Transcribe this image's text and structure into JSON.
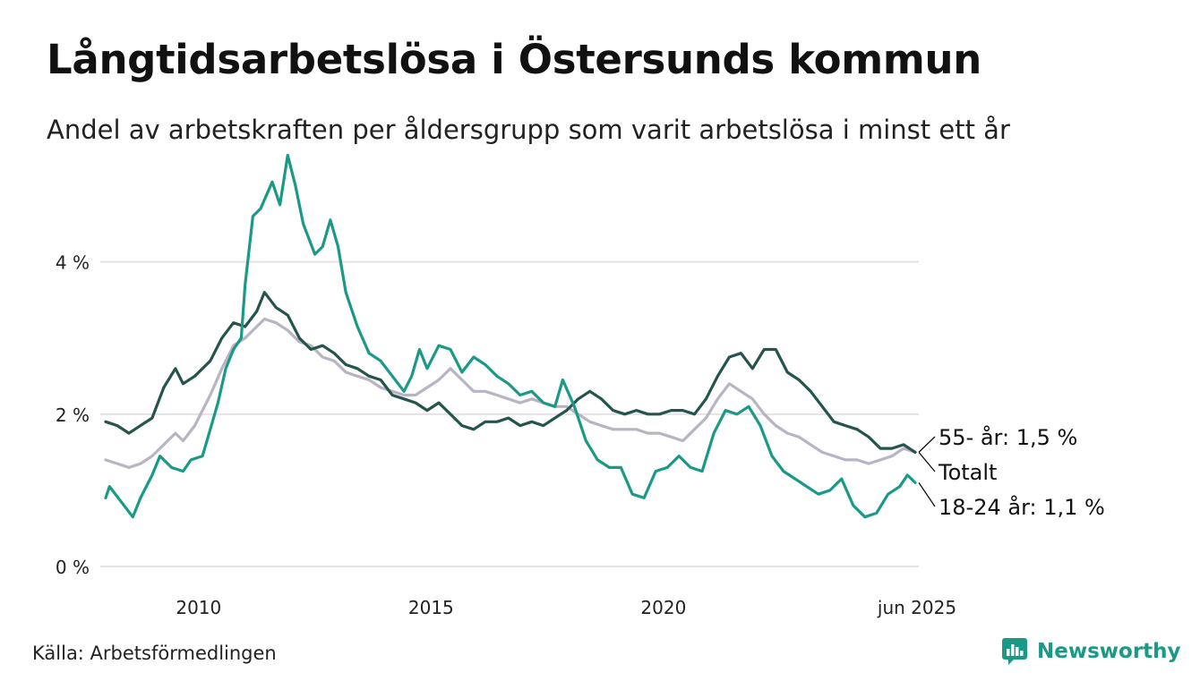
{
  "title": "Långtidsarbetslösa i Östersunds kommun",
  "subtitle": "Andel av arbetskraften per åldersgrupp som varit arbetslösa i minst ett år",
  "source": "Källa: Arbetsförmedlingen",
  "brand": "Newsworthy",
  "colors": {
    "s55": "#24544c",
    "total": "#b9b4c3",
    "s1824": "#1a9a86",
    "grid": "#e3e3e3",
    "brand": "#1a9a86"
  },
  "chart_data": {
    "type": "line",
    "x_range": [
      "2008-01",
      "2025-06"
    ],
    "ylim": [
      0,
      5.5
    ],
    "y_ticks": [
      {
        "value": 0,
        "label": "0 %"
      },
      {
        "value": 2,
        "label": "2 %"
      },
      {
        "value": 4,
        "label": "4 %"
      }
    ],
    "x_ticks": [
      {
        "value": "2010-01",
        "label": "2010"
      },
      {
        "value": "2015-01",
        "label": "2015"
      },
      {
        "value": "2020-01",
        "label": "2020"
      },
      {
        "value": "2025-06",
        "label": "jun 2025"
      }
    ],
    "grid": true,
    "series": [
      {
        "name": "55- år",
        "label": "55- år: 1,5 %",
        "color_key": "s55",
        "points": [
          [
            "2008-01",
            1.9
          ],
          [
            "2008-04",
            1.85
          ],
          [
            "2008-07",
            1.75
          ],
          [
            "2008-10",
            1.85
          ],
          [
            "2009-01",
            1.95
          ],
          [
            "2009-04",
            2.35
          ],
          [
            "2009-07",
            2.6
          ],
          [
            "2009-09",
            2.4
          ],
          [
            "2009-12",
            2.5
          ],
          [
            "2010-04",
            2.7
          ],
          [
            "2010-07",
            3.0
          ],
          [
            "2010-10",
            3.2
          ],
          [
            "2011-01",
            3.15
          ],
          [
            "2011-04",
            3.35
          ],
          [
            "2011-06",
            3.6
          ],
          [
            "2011-09",
            3.4
          ],
          [
            "2011-12",
            3.3
          ],
          [
            "2012-03",
            3.0
          ],
          [
            "2012-06",
            2.85
          ],
          [
            "2012-09",
            2.9
          ],
          [
            "2012-12",
            2.8
          ],
          [
            "2013-03",
            2.65
          ],
          [
            "2013-06",
            2.6
          ],
          [
            "2013-09",
            2.5
          ],
          [
            "2013-12",
            2.45
          ],
          [
            "2014-03",
            2.25
          ],
          [
            "2014-06",
            2.2
          ],
          [
            "2014-09",
            2.15
          ],
          [
            "2014-12",
            2.05
          ],
          [
            "2015-03",
            2.15
          ],
          [
            "2015-06",
            2.0
          ],
          [
            "2015-09",
            1.85
          ],
          [
            "2015-12",
            1.8
          ],
          [
            "2016-03",
            1.9
          ],
          [
            "2016-06",
            1.9
          ],
          [
            "2016-09",
            1.95
          ],
          [
            "2016-12",
            1.85
          ],
          [
            "2017-03",
            1.9
          ],
          [
            "2017-06",
            1.85
          ],
          [
            "2017-09",
            1.95
          ],
          [
            "2017-12",
            2.05
          ],
          [
            "2018-03",
            2.2
          ],
          [
            "2018-06",
            2.3
          ],
          [
            "2018-09",
            2.2
          ],
          [
            "2018-12",
            2.05
          ],
          [
            "2019-03",
            2.0
          ],
          [
            "2019-06",
            2.05
          ],
          [
            "2019-09",
            2.0
          ],
          [
            "2019-12",
            2.0
          ],
          [
            "2020-03",
            2.05
          ],
          [
            "2020-06",
            2.05
          ],
          [
            "2020-09",
            2.0
          ],
          [
            "2020-12",
            2.2
          ],
          [
            "2021-03",
            2.5
          ],
          [
            "2021-06",
            2.75
          ],
          [
            "2021-09",
            2.8
          ],
          [
            "2021-12",
            2.6
          ],
          [
            "2022-03",
            2.85
          ],
          [
            "2022-06",
            2.85
          ],
          [
            "2022-09",
            2.55
          ],
          [
            "2022-12",
            2.45
          ],
          [
            "2023-03",
            2.3
          ],
          [
            "2023-06",
            2.1
          ],
          [
            "2023-09",
            1.9
          ],
          [
            "2023-12",
            1.85
          ],
          [
            "2024-03",
            1.8
          ],
          [
            "2024-06",
            1.7
          ],
          [
            "2024-09",
            1.55
          ],
          [
            "2024-12",
            1.55
          ],
          [
            "2025-03",
            1.6
          ],
          [
            "2025-06",
            1.5
          ]
        ]
      },
      {
        "name": "Totalt",
        "label": "Totalt",
        "color_key": "total",
        "points": [
          [
            "2008-01",
            1.4
          ],
          [
            "2008-04",
            1.35
          ],
          [
            "2008-07",
            1.3
          ],
          [
            "2008-10",
            1.35
          ],
          [
            "2009-01",
            1.45
          ],
          [
            "2009-04",
            1.6
          ],
          [
            "2009-07",
            1.75
          ],
          [
            "2009-09",
            1.65
          ],
          [
            "2009-12",
            1.85
          ],
          [
            "2010-04",
            2.25
          ],
          [
            "2010-07",
            2.6
          ],
          [
            "2010-10",
            2.9
          ],
          [
            "2011-01",
            3.0
          ],
          [
            "2011-04",
            3.15
          ],
          [
            "2011-06",
            3.25
          ],
          [
            "2011-09",
            3.2
          ],
          [
            "2011-12",
            3.1
          ],
          [
            "2012-03",
            2.95
          ],
          [
            "2012-06",
            2.9
          ],
          [
            "2012-09",
            2.75
          ],
          [
            "2012-12",
            2.7
          ],
          [
            "2013-03",
            2.55
          ],
          [
            "2013-06",
            2.5
          ],
          [
            "2013-09",
            2.45
          ],
          [
            "2013-12",
            2.35
          ],
          [
            "2014-03",
            2.3
          ],
          [
            "2014-06",
            2.25
          ],
          [
            "2014-09",
            2.25
          ],
          [
            "2014-12",
            2.35
          ],
          [
            "2015-03",
            2.45
          ],
          [
            "2015-06",
            2.6
          ],
          [
            "2015-09",
            2.45
          ],
          [
            "2015-12",
            2.3
          ],
          [
            "2016-03",
            2.3
          ],
          [
            "2016-06",
            2.25
          ],
          [
            "2016-09",
            2.2
          ],
          [
            "2016-12",
            2.15
          ],
          [
            "2017-03",
            2.2
          ],
          [
            "2017-06",
            2.15
          ],
          [
            "2017-09",
            2.1
          ],
          [
            "2017-12",
            2.1
          ],
          [
            "2018-03",
            2.0
          ],
          [
            "2018-06",
            1.9
          ],
          [
            "2018-09",
            1.85
          ],
          [
            "2018-12",
            1.8
          ],
          [
            "2019-03",
            1.8
          ],
          [
            "2019-06",
            1.8
          ],
          [
            "2019-09",
            1.75
          ],
          [
            "2019-12",
            1.75
          ],
          [
            "2020-03",
            1.7
          ],
          [
            "2020-06",
            1.65
          ],
          [
            "2020-09",
            1.8
          ],
          [
            "2020-12",
            1.95
          ],
          [
            "2021-03",
            2.2
          ],
          [
            "2021-06",
            2.4
          ],
          [
            "2021-09",
            2.3
          ],
          [
            "2021-12",
            2.2
          ],
          [
            "2022-03",
            2.0
          ],
          [
            "2022-06",
            1.85
          ],
          [
            "2022-09",
            1.75
          ],
          [
            "2022-12",
            1.7
          ],
          [
            "2023-03",
            1.6
          ],
          [
            "2023-06",
            1.5
          ],
          [
            "2023-09",
            1.45
          ],
          [
            "2023-12",
            1.4
          ],
          [
            "2024-03",
            1.4
          ],
          [
            "2024-06",
            1.35
          ],
          [
            "2024-09",
            1.4
          ],
          [
            "2024-12",
            1.45
          ],
          [
            "2025-03",
            1.55
          ],
          [
            "2025-06",
            1.5
          ]
        ]
      },
      {
        "name": "18-24 år",
        "label": "18-24 år: 1,1 %",
        "color_key": "s1824",
        "points": [
          [
            "2008-01",
            0.9
          ],
          [
            "2008-02",
            1.05
          ],
          [
            "2008-05",
            0.85
          ],
          [
            "2008-08",
            0.65
          ],
          [
            "2008-10",
            0.9
          ],
          [
            "2009-01",
            1.2
          ],
          [
            "2009-03",
            1.45
          ],
          [
            "2009-06",
            1.3
          ],
          [
            "2009-09",
            1.25
          ],
          [
            "2009-11",
            1.4
          ],
          [
            "2010-02",
            1.45
          ],
          [
            "2010-04",
            1.8
          ],
          [
            "2010-06",
            2.15
          ],
          [
            "2010-08",
            2.6
          ],
          [
            "2010-10",
            2.85
          ],
          [
            "2010-12",
            3.0
          ],
          [
            "2011-01",
            3.7
          ],
          [
            "2011-03",
            4.6
          ],
          [
            "2011-05",
            4.7
          ],
          [
            "2011-08",
            5.05
          ],
          [
            "2011-10",
            4.75
          ],
          [
            "2011-12",
            5.4
          ],
          [
            "2012-02",
            5.0
          ],
          [
            "2012-04",
            4.5
          ],
          [
            "2012-07",
            4.1
          ],
          [
            "2012-09",
            4.2
          ],
          [
            "2012-11",
            4.55
          ],
          [
            "2013-01",
            4.2
          ],
          [
            "2013-03",
            3.6
          ],
          [
            "2013-06",
            3.15
          ],
          [
            "2013-09",
            2.8
          ],
          [
            "2013-12",
            2.7
          ],
          [
            "2014-03",
            2.5
          ],
          [
            "2014-06",
            2.3
          ],
          [
            "2014-08",
            2.5
          ],
          [
            "2014-10",
            2.85
          ],
          [
            "2014-12",
            2.6
          ],
          [
            "2015-03",
            2.9
          ],
          [
            "2015-06",
            2.85
          ],
          [
            "2015-09",
            2.55
          ],
          [
            "2015-12",
            2.75
          ],
          [
            "2016-03",
            2.65
          ],
          [
            "2016-06",
            2.5
          ],
          [
            "2016-09",
            2.4
          ],
          [
            "2016-12",
            2.25
          ],
          [
            "2017-03",
            2.3
          ],
          [
            "2017-06",
            2.15
          ],
          [
            "2017-09",
            2.1
          ],
          [
            "2017-11",
            2.45
          ],
          [
            "2018-02",
            2.1
          ],
          [
            "2018-05",
            1.65
          ],
          [
            "2018-08",
            1.4
          ],
          [
            "2018-11",
            1.3
          ],
          [
            "2019-02",
            1.3
          ],
          [
            "2019-05",
            0.95
          ],
          [
            "2019-08",
            0.9
          ],
          [
            "2019-11",
            1.25
          ],
          [
            "2020-02",
            1.3
          ],
          [
            "2020-05",
            1.45
          ],
          [
            "2020-08",
            1.3
          ],
          [
            "2020-11",
            1.25
          ],
          [
            "2021-02",
            1.75
          ],
          [
            "2021-05",
            2.05
          ],
          [
            "2021-08",
            2.0
          ],
          [
            "2021-11",
            2.1
          ],
          [
            "2022-02",
            1.85
          ],
          [
            "2022-05",
            1.45
          ],
          [
            "2022-08",
            1.25
          ],
          [
            "2022-11",
            1.15
          ],
          [
            "2023-02",
            1.05
          ],
          [
            "2023-05",
            0.95
          ],
          [
            "2023-08",
            1.0
          ],
          [
            "2023-11",
            1.15
          ],
          [
            "2024-02",
            0.8
          ],
          [
            "2024-05",
            0.65
          ],
          [
            "2024-08",
            0.7
          ],
          [
            "2024-11",
            0.95
          ],
          [
            "2025-02",
            1.05
          ],
          [
            "2025-04",
            1.2
          ],
          [
            "2025-06",
            1.1
          ]
        ]
      }
    ]
  }
}
